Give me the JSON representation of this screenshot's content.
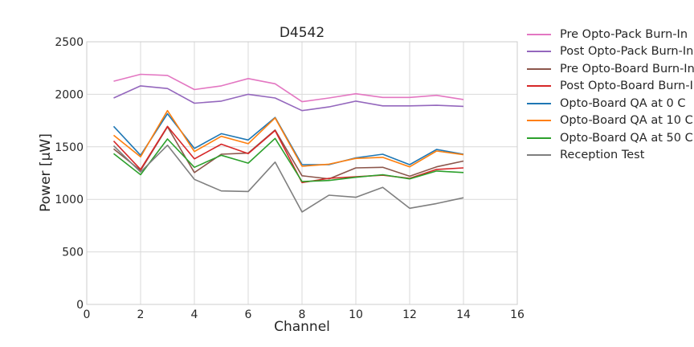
{
  "chart_data": {
    "type": "line",
    "title": "D4542",
    "xlabel": "Channel",
    "ylabel": "Power [μW]",
    "xlim": [
      0,
      16
    ],
    "ylim": [
      0,
      2500
    ],
    "xticks": [
      0,
      2,
      4,
      6,
      8,
      10,
      12,
      14,
      16
    ],
    "yticks": [
      0,
      500,
      1000,
      1500,
      2000,
      2500
    ],
    "grid": true,
    "legend_position": "outside-right",
    "x": [
      1,
      2,
      3,
      4,
      5,
      6,
      7,
      8,
      9,
      10,
      11,
      12,
      13,
      14
    ],
    "series": [
      {
        "name": "Pre Opto-Pack Burn-In",
        "color": "#e377c2",
        "values": [
          2125,
          2190,
          2180,
          2045,
          2080,
          2150,
          2100,
          1930,
          1965,
          2005,
          1970,
          1970,
          1990,
          1950
        ]
      },
      {
        "name": "Post Opto-Pack Burn-In",
        "color": "#9467bd",
        "values": [
          1965,
          2080,
          2055,
          1915,
          1935,
          2000,
          1965,
          1845,
          1880,
          1935,
          1890,
          1890,
          1895,
          1885
        ]
      },
      {
        "name": "Pre Opto-Board Burn-In",
        "color": "#8c564b",
        "values": [
          1480,
          1275,
          1690,
          1255,
          1430,
          1440,
          1660,
          1225,
          1195,
          1300,
          1305,
          1220,
          1310,
          1365
        ]
      },
      {
        "name": "Post Opto-Board Burn-In",
        "color": "#d62728",
        "values": [
          1555,
          1285,
          1695,
          1385,
          1525,
          1435,
          1655,
          1160,
          1200,
          1215,
          1230,
          1200,
          1285,
          1300
        ]
      },
      {
        "name": "Opto-Board QA at 0 C",
        "color": "#1f77b4",
        "values": [
          1695,
          1420,
          1815,
          1485,
          1625,
          1565,
          1780,
          1330,
          1330,
          1395,
          1430,
          1330,
          1475,
          1430
        ]
      },
      {
        "name": "Opto-Board QA at 10 C",
        "color": "#ff7f0e",
        "values": [
          1610,
          1405,
          1845,
          1455,
          1600,
          1530,
          1775,
          1315,
          1335,
          1390,
          1400,
          1310,
          1460,
          1425
        ]
      },
      {
        "name": "Opto-Board QA at 50 C",
        "color": "#2ca02c",
        "values": [
          1435,
          1235,
          1575,
          1305,
          1420,
          1345,
          1580,
          1170,
          1180,
          1210,
          1235,
          1195,
          1270,
          1255
        ]
      },
      {
        "name": "Reception Test",
        "color": "#7f7f7f",
        "values": [
          1510,
          1260,
          1515,
          1190,
          1080,
          1075,
          1355,
          880,
          1040,
          1020,
          1115,
          915,
          960,
          1015
        ]
      }
    ]
  }
}
